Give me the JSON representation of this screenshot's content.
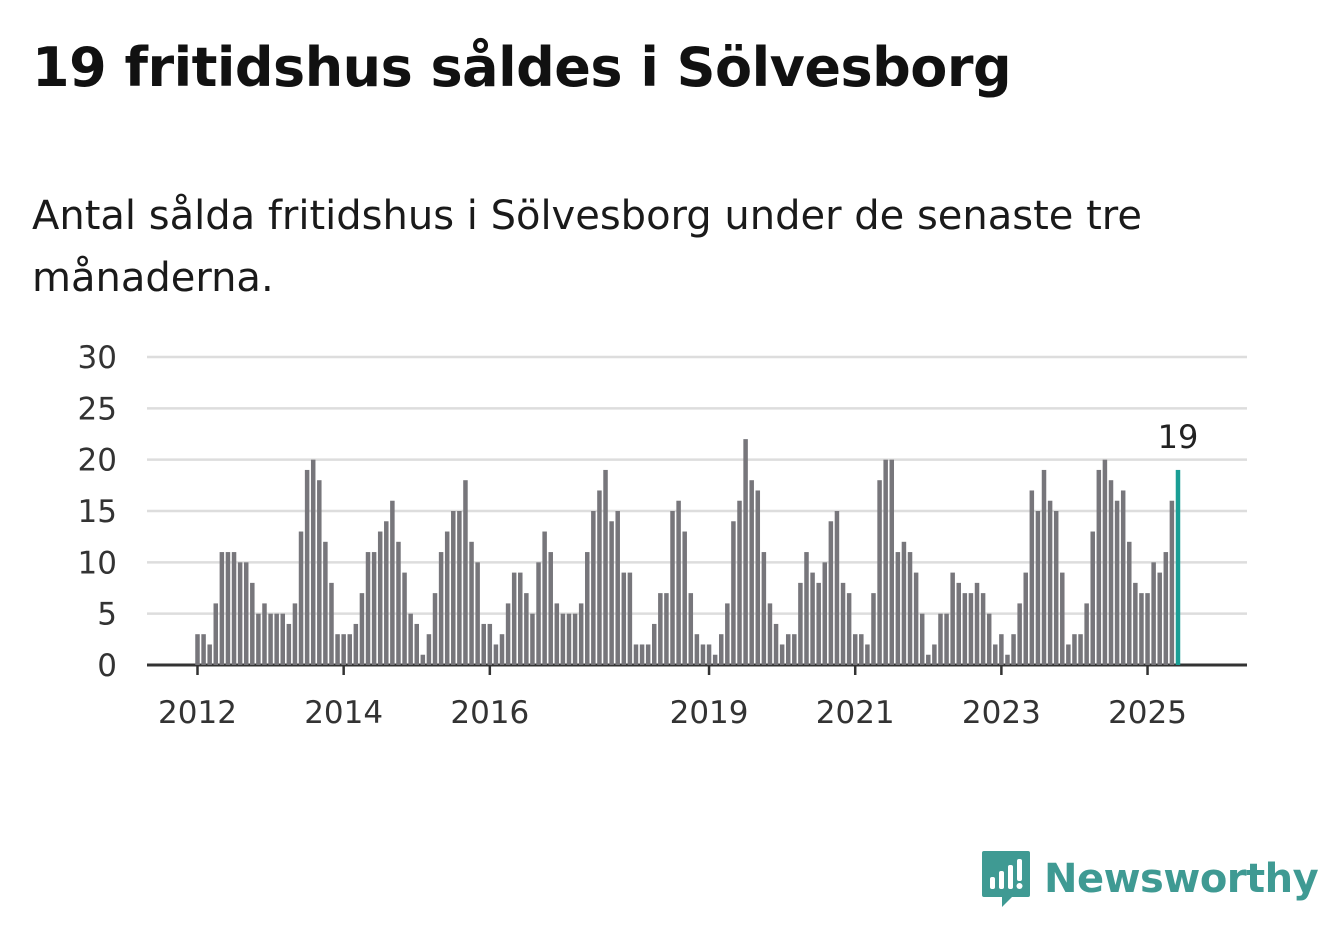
{
  "title": "19 fritidshus såldes i Sölvesborg",
  "subtitle": "Antal sålda fritidshus i Sölvesborg under de senaste tre månaderna.",
  "brand": {
    "name": "Newsworthy",
    "color": "#3f9a93"
  },
  "colors": {
    "bar": "#77767b",
    "highlight": "#1a9e95",
    "grid": "#dddddd",
    "axis": "#333333"
  },
  "chart_data": {
    "type": "bar",
    "start": "2012-01",
    "x_tick_labels": [
      "2012",
      "2014",
      "2016",
      "2019",
      "2021",
      "2023",
      "2025"
    ],
    "y_ticks": [
      0,
      5,
      10,
      15,
      20,
      25,
      30
    ],
    "ylim": [
      0,
      30
    ],
    "grid": true,
    "highlight_label": "19",
    "series": [
      {
        "months": [
          "2012-01",
          "2012-02",
          "2012-03",
          "2012-04",
          "2012-05",
          "2012-06",
          "2012-07",
          "2012-08",
          "2012-09",
          "2012-10",
          "2012-11",
          "2012-12",
          "2013-01",
          "2013-02",
          "2013-03",
          "2013-04",
          "2013-05",
          "2013-06",
          "2013-07",
          "2013-08",
          "2013-09",
          "2013-10",
          "2013-11",
          "2013-12",
          "2014-01",
          "2014-02",
          "2014-03",
          "2014-04",
          "2014-05",
          "2014-06",
          "2014-07",
          "2014-08",
          "2014-09",
          "2014-10",
          "2014-11",
          "2014-12",
          "2015-01",
          "2015-02",
          "2015-03",
          "2015-04",
          "2015-05",
          "2015-06",
          "2015-07",
          "2015-08",
          "2015-09",
          "2015-10",
          "2015-11",
          "2015-12",
          "2016-01",
          "2016-02",
          "2016-03",
          "2016-04",
          "2016-05",
          "2016-06",
          "2016-07",
          "2016-08",
          "2016-09",
          "2016-10",
          "2016-11",
          "2016-12",
          "2017-01",
          "2017-02",
          "2017-03",
          "2017-04",
          "2017-05",
          "2017-06",
          "2017-07",
          "2017-08",
          "2017-09",
          "2017-10",
          "2017-11",
          "2017-12",
          "2018-01",
          "2018-02",
          "2018-03",
          "2018-04",
          "2018-05",
          "2018-06",
          "2018-07",
          "2018-08",
          "2018-09",
          "2018-10",
          "2018-11",
          "2018-12",
          "2019-01",
          "2019-02",
          "2019-03",
          "2019-04",
          "2019-05",
          "2019-06",
          "2019-07",
          "2019-08",
          "2019-09",
          "2019-10",
          "2019-11",
          "2019-12",
          "2020-01",
          "2020-02",
          "2020-03",
          "2020-04",
          "2020-05",
          "2020-06",
          "2020-07",
          "2020-08",
          "2020-09",
          "2020-10",
          "2020-11",
          "2020-12",
          "2021-01",
          "2021-02",
          "2021-03",
          "2021-04",
          "2021-05",
          "2021-06",
          "2021-07",
          "2021-08",
          "2021-09",
          "2021-10",
          "2021-11",
          "2021-12",
          "2022-01",
          "2022-02",
          "2022-03",
          "2022-04",
          "2022-05",
          "2022-06",
          "2022-07",
          "2022-08",
          "2022-09",
          "2022-10",
          "2022-11",
          "2022-12",
          "2023-01",
          "2023-02",
          "2023-03",
          "2023-04",
          "2023-05",
          "2023-06",
          "2023-07",
          "2023-08",
          "2023-09",
          "2023-10",
          "2023-11",
          "2023-12",
          "2024-01",
          "2024-02",
          "2024-03",
          "2024-04",
          "2024-05",
          "2024-06",
          "2024-07",
          "2024-08",
          "2024-09",
          "2024-10",
          "2024-11",
          "2024-12",
          "2025-01",
          "2025-02",
          "2025-03",
          "2025-04",
          "2025-05",
          "2025-06"
        ],
        "values": [
          3,
          3,
          2,
          6,
          11,
          11,
          11,
          10,
          10,
          8,
          5,
          6,
          5,
          5,
          5,
          4,
          6,
          13,
          19,
          20,
          18,
          12,
          8,
          3,
          3,
          3,
          4,
          7,
          11,
          11,
          13,
          14,
          16,
          12,
          9,
          5,
          4,
          1,
          3,
          7,
          11,
          13,
          15,
          15,
          18,
          12,
          10,
          4,
          4,
          2,
          3,
          6,
          9,
          9,
          7,
          5,
          10,
          13,
          11,
          6,
          5,
          5,
          5,
          6,
          11,
          15,
          17,
          19,
          14,
          15,
          9,
          9,
          2,
          2,
          2,
          4,
          7,
          7,
          15,
          16,
          13,
          7,
          3,
          2,
          2,
          1,
          3,
          6,
          14,
          16,
          22,
          18,
          17,
          11,
          6,
          4,
          2,
          3,
          3,
          8,
          11,
          9,
          8,
          10,
          14,
          15,
          8,
          7,
          3,
          3,
          2,
          7,
          18,
          20,
          20,
          11,
          12,
          11,
          9,
          5,
          1,
          2,
          5,
          5,
          9,
          8,
          7,
          7,
          8,
          7,
          5,
          2,
          3,
          1,
          3,
          6,
          9,
          17,
          15,
          19,
          16,
          15,
          9,
          2,
          3,
          3,
          6,
          13,
          19,
          20,
          18,
          16,
          17,
          12,
          8,
          7,
          7,
          10,
          9,
          11,
          16,
          19
        ]
      }
    ]
  }
}
